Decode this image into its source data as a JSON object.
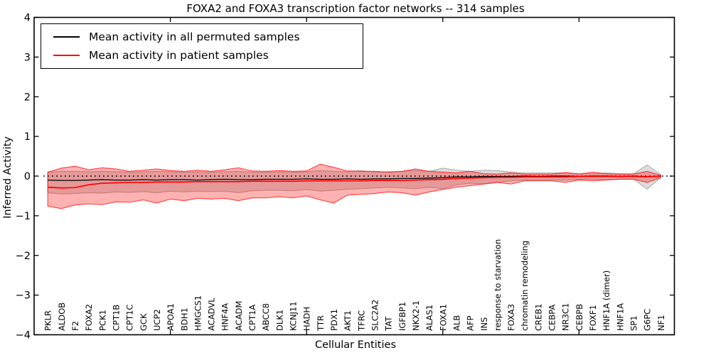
{
  "chart_data": {
    "type": "line",
    "title": "FOXA2 and FOXA3 transcription factor networks -- 314 samples",
    "xlabel": "Cellular Entities",
    "ylabel": "Inferred Activity",
    "xlim": [
      0,
      47
    ],
    "ylim": [
      -4,
      4
    ],
    "yticks": [
      "4",
      "3",
      "2",
      "1",
      "0",
      "−1",
      "−2",
      "−3",
      "−4"
    ],
    "ytick_values": [
      4,
      3,
      2,
      1,
      0,
      -1,
      -2,
      -3,
      -4
    ],
    "xtick_values": [
      10,
      20,
      30,
      40
    ],
    "grid": false,
    "zero_line": {
      "style": "dotted",
      "color": "#000000",
      "y": 0
    },
    "legend": {
      "position": "upper left",
      "items": [
        {
          "label": "Mean activity in all permuted samples",
          "color": "#000000"
        },
        {
          "label": "Mean activity in patient samples",
          "color": "#ff0000"
        }
      ]
    },
    "categories": [
      "PKLR",
      "ALDOB",
      "F2",
      "FOXA2",
      "PCK1",
      "CPT1B",
      "CPT1C",
      "GCK",
      "UCP2",
      "APOA1",
      "BDH1",
      "HMGCS1",
      "ACADVL",
      "HNF4A",
      "ACADM",
      "CPT1A",
      "ABCC8",
      "DLK1",
      "KCNJ11",
      "HADH",
      "TTR",
      "PDX1",
      "AKT1",
      "TFRC",
      "SLC2A2",
      "TAT",
      "IGFBP1",
      "NKX2-1",
      "ALAS1",
      "FOXA1",
      "ALB",
      "AFP",
      "INS",
      "response to starvation",
      "FOXA3",
      "chromatin remodeling",
      "CREB1",
      "CEBPA",
      "NR3C1",
      "CEBPB",
      "FOXF1",
      "HNF1A (dimer)",
      "HNF1A",
      "SP1",
      "G6PC",
      "NF1"
    ],
    "series": [
      {
        "name": "Mean activity in all permuted samples",
        "color": "#000000",
        "width": 1.3,
        "values": [
          -0.1,
          -0.11,
          -0.11,
          -0.1,
          -0.09,
          -0.1,
          -0.1,
          -0.09,
          -0.1,
          -0.09,
          -0.09,
          -0.1,
          -0.09,
          -0.08,
          -0.09,
          -0.09,
          -0.08,
          -0.08,
          -0.08,
          -0.07,
          -0.08,
          -0.08,
          -0.07,
          -0.08,
          -0.07,
          -0.07,
          -0.06,
          -0.06,
          -0.05,
          -0.04,
          -0.02,
          -0.02,
          -0.01,
          -0.01,
          -0.01,
          0.0,
          -0.01,
          0.0,
          0.0,
          -0.01,
          0.0,
          0.0,
          -0.01,
          0.0,
          -0.02,
          0.0
        ]
      },
      {
        "name": "Mean activity in patient samples",
        "color": "#ff0000",
        "width": 1.7,
        "values": [
          -0.28,
          -0.3,
          -0.29,
          -0.22,
          -0.18,
          -0.17,
          -0.16,
          -0.16,
          -0.15,
          -0.15,
          -0.15,
          -0.14,
          -0.14,
          -0.14,
          -0.14,
          -0.13,
          -0.13,
          -0.13,
          -0.13,
          -0.12,
          -0.12,
          -0.12,
          -0.12,
          -0.12,
          -0.11,
          -0.11,
          -0.11,
          -0.1,
          -0.09,
          -0.08,
          -0.06,
          -0.05,
          -0.04,
          -0.03,
          -0.03,
          -0.02,
          -0.02,
          -0.02,
          -0.02,
          -0.01,
          -0.01,
          -0.01,
          -0.01,
          -0.01,
          -0.02,
          0.0
        ]
      }
    ],
    "bands": [
      {
        "name": "permuted-samples-range",
        "fill": "rgba(128,128,128,0.28)",
        "edge": "rgba(128,128,128,0.55)",
        "upper": [
          0.1,
          0.12,
          0.12,
          0.11,
          0.12,
          0.11,
          0.1,
          0.11,
          0.12,
          0.11,
          0.1,
          0.11,
          0.1,
          0.11,
          0.12,
          0.1,
          0.1,
          0.11,
          0.1,
          0.11,
          0.14,
          0.12,
          0.11,
          0.14,
          0.1,
          0.11,
          0.12,
          0.14,
          0.12,
          0.2,
          0.15,
          0.12,
          0.15,
          0.14,
          0.1,
          0.08,
          0.08,
          0.08,
          0.08,
          0.06,
          0.06,
          0.08,
          0.06,
          0.06,
          0.28,
          0.04
        ],
        "lower": [
          -0.42,
          -0.45,
          -0.44,
          -0.42,
          -0.43,
          -0.4,
          -0.41,
          -0.39,
          -0.42,
          -0.38,
          -0.4,
          -0.38,
          -0.39,
          -0.38,
          -0.42,
          -0.37,
          -0.36,
          -0.36,
          -0.37,
          -0.34,
          -0.38,
          -0.36,
          -0.33,
          -0.32,
          -0.3,
          -0.28,
          -0.3,
          -0.32,
          -0.28,
          -0.32,
          -0.22,
          -0.18,
          -0.2,
          -0.16,
          -0.12,
          -0.1,
          -0.1,
          -0.1,
          -0.1,
          -0.08,
          -0.08,
          -0.1,
          -0.08,
          -0.08,
          -0.33,
          -0.04
        ]
      },
      {
        "name": "patient-samples-range",
        "fill": "rgba(255,0,0,0.30)",
        "edge": "rgba(255,0,0,0.70)",
        "upper": [
          0.1,
          0.2,
          0.25,
          0.16,
          0.21,
          0.18,
          0.12,
          0.15,
          0.18,
          0.14,
          0.12,
          0.15,
          0.12,
          0.16,
          0.21,
          0.13,
          0.12,
          0.14,
          0.12,
          0.13,
          0.3,
          0.22,
          0.13,
          0.12,
          0.12,
          0.1,
          0.12,
          0.18,
          0.12,
          0.1,
          0.08,
          0.12,
          0.06,
          0.05,
          0.08,
          0.05,
          0.05,
          0.05,
          0.09,
          0.05,
          0.1,
          0.06,
          0.05,
          0.05,
          0.12,
          0.02
        ],
        "lower": [
          -0.76,
          -0.82,
          -0.73,
          -0.7,
          -0.72,
          -0.65,
          -0.66,
          -0.6,
          -0.68,
          -0.58,
          -0.62,
          -0.56,
          -0.58,
          -0.56,
          -0.62,
          -0.55,
          -0.55,
          -0.52,
          -0.55,
          -0.5,
          -0.6,
          -0.68,
          -0.48,
          -0.46,
          -0.44,
          -0.4,
          -0.42,
          -0.48,
          -0.4,
          -0.34,
          -0.28,
          -0.24,
          -0.2,
          -0.16,
          -0.2,
          -0.12,
          -0.12,
          -0.12,
          -0.16,
          -0.1,
          -0.12,
          -0.1,
          -0.08,
          -0.08,
          -0.16,
          -0.04
        ]
      }
    ],
    "colors": {
      "axis": "#000000",
      "background": "#ffffff",
      "accent_red": "#ff0000"
    }
  }
}
